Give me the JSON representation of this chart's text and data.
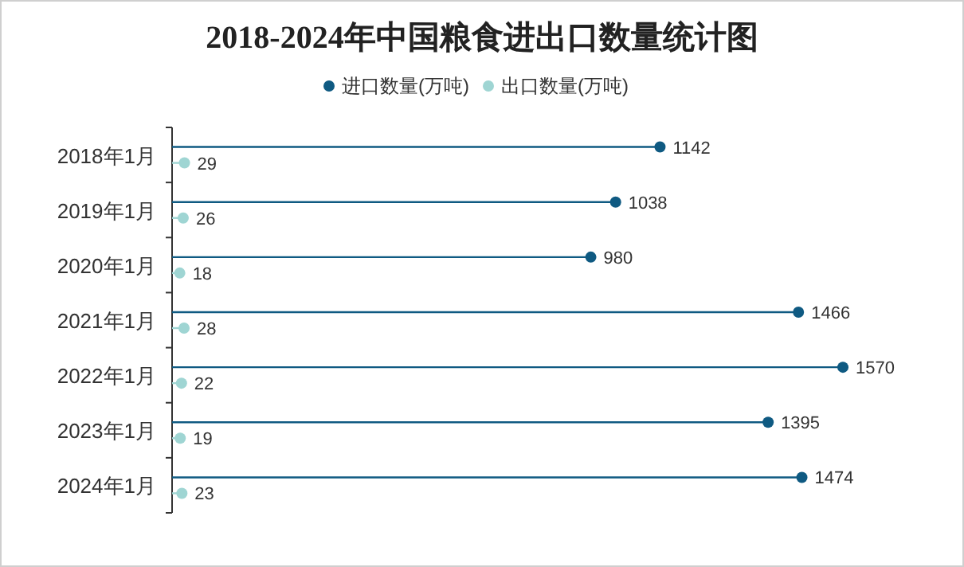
{
  "chart_data": {
    "type": "lollipop",
    "orientation": "horizontal",
    "title": "2018-2024年中国粮食进出口数量统计图",
    "categories": [
      "2018年1月",
      "2019年1月",
      "2020年1月",
      "2021年1月",
      "2022年1月",
      "2023年1月",
      "2024年1月"
    ],
    "series": [
      {
        "name": "进口数量(万吨)",
        "color": "#0f5a82",
        "values": [
          1142,
          1038,
          980,
          1466,
          1570,
          1395,
          1474
        ]
      },
      {
        "name": "出口数量(万吨)",
        "color": "#9fd5d3",
        "values": [
          29,
          26,
          18,
          28,
          22,
          19,
          23
        ]
      }
    ],
    "data_labels": true,
    "legend": "top",
    "marker": "circle",
    "grid": false
  }
}
